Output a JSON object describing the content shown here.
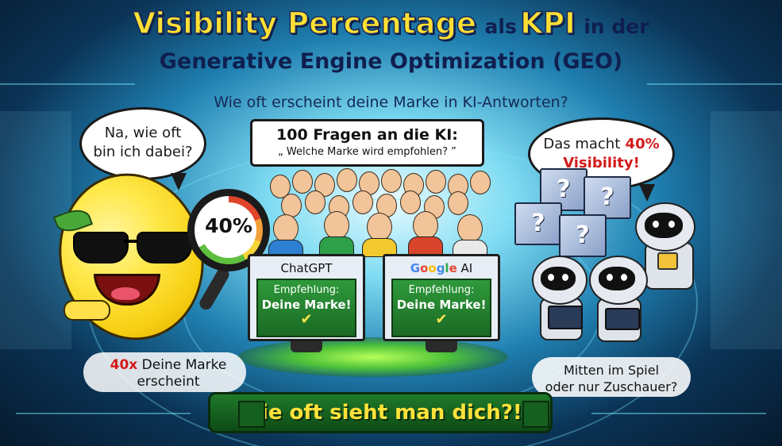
{
  "title": {
    "main": "Visibility Percentage",
    "als": "als",
    "kpi": "KPI",
    "in_der": "in der",
    "line2": "Generative Engine Optimization (GEO)"
  },
  "subtitle": "Wie oft erscheint deine Marke in KI-Antworten?",
  "bubble_left": {
    "line1": "Na, wie oft",
    "line2": "bin ich dabei?"
  },
  "bubble_right": {
    "line1_prefix": "Das macht",
    "percent": "40%",
    "line2": "Visibility!"
  },
  "prompt": {
    "title": "100 Fragen an die KI:",
    "question": "„ Welche Marke wird empfohlen? ”"
  },
  "magnifier": {
    "value": "40%",
    "level": 0.4
  },
  "monitors": [
    {
      "label": "ChatGPT",
      "line1": "Empfehlung:",
      "line2": "Deine Marke!",
      "check": "✔"
    },
    {
      "label_brand": "Google",
      "label_suffix": "AI",
      "line1": "Empfehlung:",
      "line2": "Deine Marke!",
      "check": "✔"
    }
  ],
  "cubes": [
    "?",
    "?",
    "?",
    "?"
  ],
  "left_note": {
    "count": "40x",
    "rest": "Deine Marke",
    "line2": "erscheint"
  },
  "right_note": {
    "line1": "Mitten im Spiel",
    "line2": "oder nur Zuschauer?"
  },
  "banner": "Wie oft sieht man dich?!",
  "colors": {
    "title_yellow": "#ffe033",
    "accent_red": "#d31b1b",
    "banner_green": "#1f7a2a",
    "screen_green": "#2f9a3b"
  }
}
